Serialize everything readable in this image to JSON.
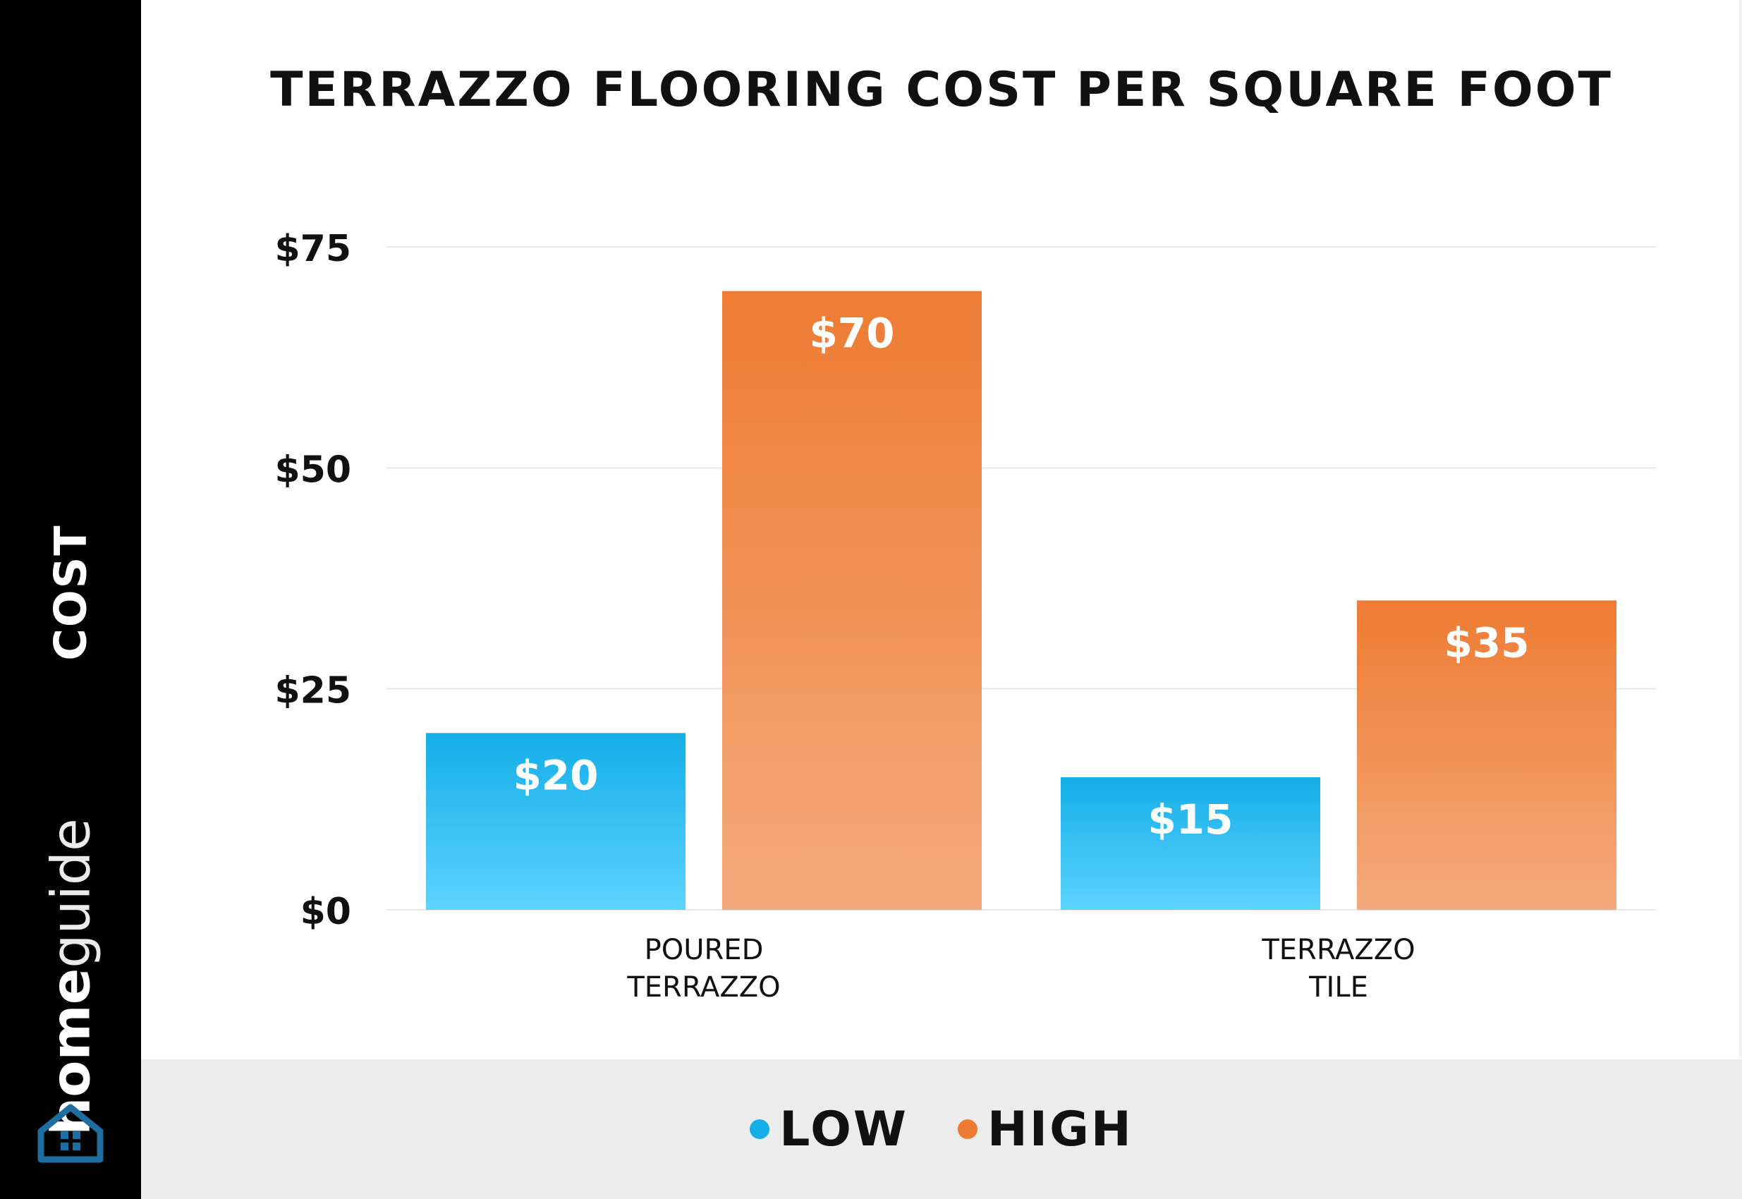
{
  "brand": {
    "bold": "home",
    "light": "guide"
  },
  "colors": {
    "low_top": "#14aee8",
    "low_bottom": "#5dd3ff",
    "high_top": "#ee7b33",
    "high_bottom": "#f4aa7c",
    "low_dot": "#14aee8",
    "high_dot": "#ee7b33"
  },
  "chart_data": {
    "type": "bar",
    "title": "TERRAZZO FLOORING COST PER SQUARE FOOT",
    "ylabel": "COST",
    "xlabel": "",
    "categories": [
      [
        "POURED",
        "TERRAZZO"
      ],
      [
        "TERRAZZO",
        "TILE"
      ]
    ],
    "series": [
      {
        "name": "LOW",
        "values": [
          20,
          15
        ],
        "labels": [
          "$20",
          "$15"
        ]
      },
      {
        "name": "HIGH",
        "values": [
          70,
          35
        ],
        "labels": [
          "$70",
          "$35"
        ]
      }
    ],
    "yticks": [
      0,
      25,
      50,
      75
    ],
    "ytick_labels": [
      "$0",
      "$25",
      "$50",
      "$75"
    ],
    "ylim": [
      0,
      75
    ],
    "grid": true,
    "legend": "bottom"
  }
}
